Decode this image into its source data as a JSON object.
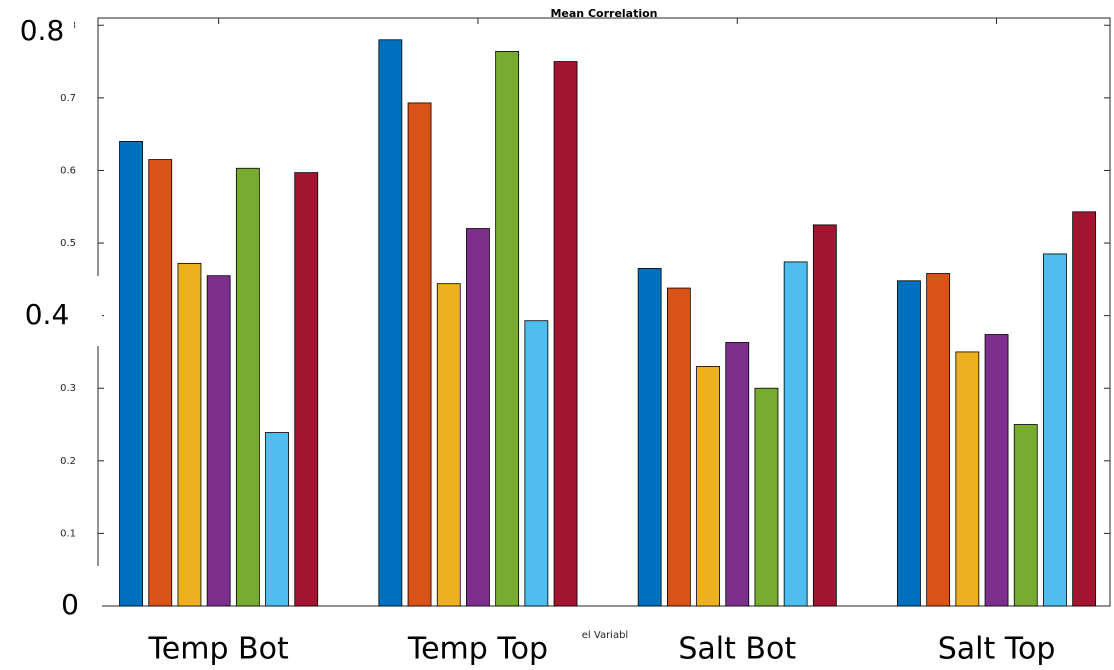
{
  "chart_data": {
    "type": "bar",
    "title": "Mean Correlation",
    "xlabel": "el Variabl",
    "categories": [
      "Temp Bot",
      "Temp Top",
      "Salt Bot",
      "Salt Top"
    ],
    "overlay_labels": [
      "0.8",
      "0.4",
      "0"
    ],
    "series": [
      {
        "color": "#0072BD",
        "values": [
          0.64,
          0.78,
          0.465,
          0.448
        ]
      },
      {
        "color": "#D95319",
        "values": [
          0.615,
          0.693,
          0.438,
          0.458
        ]
      },
      {
        "color": "#EDB120",
        "values": [
          0.472,
          0.444,
          0.33,
          0.35
        ]
      },
      {
        "color": "#7E2F8E",
        "values": [
          0.455,
          0.52,
          0.363,
          0.374
        ]
      },
      {
        "color": "#77AC30",
        "values": [
          0.603,
          0.764,
          0.3,
          0.25
        ]
      },
      {
        "color": "#4DBEEE",
        "values": [
          0.239,
          0.393,
          0.474,
          0.485
        ]
      },
      {
        "color": "#A2142F",
        "values": [
          0.597,
          0.75,
          0.525,
          0.543
        ]
      }
    ],
    "ylim": [
      0,
      0.81
    ],
    "yticks": [
      0,
      0.1,
      0.2,
      0.3,
      0.4,
      0.5,
      0.6,
      0.7,
      0.8
    ]
  }
}
